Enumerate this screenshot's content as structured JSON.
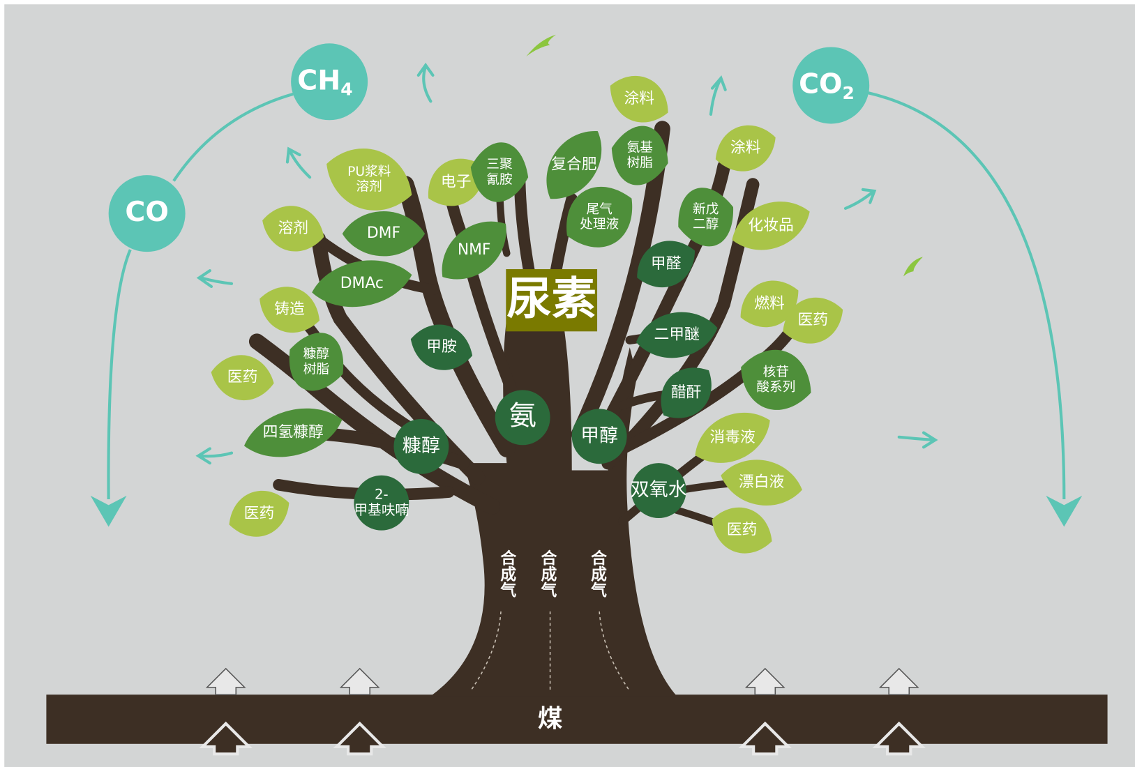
{
  "center_label": "尿素",
  "bubbles": [
    {
      "text": "CH",
      "sub": "4"
    },
    {
      "text": "CO"
    },
    {
      "text": "CO",
      "sub": "2"
    }
  ],
  "syngas": [
    "合成气",
    "合成气",
    "合成气"
  ],
  "ground": "煤",
  "nodes": [
    {
      "lines": [
        "涂料"
      ]
    },
    {
      "lines": [
        "涂料"
      ]
    },
    {
      "lines": [
        "PU浆料",
        "溶剂"
      ]
    },
    {
      "lines": [
        "电子"
      ]
    },
    {
      "lines": [
        "溶剂"
      ]
    },
    {
      "lines": [
        "化妆品"
      ]
    },
    {
      "lines": [
        "铸造"
      ]
    },
    {
      "lines": [
        "燃料"
      ]
    },
    {
      "lines": [
        "医药"
      ]
    },
    {
      "lines": [
        "医药"
      ]
    },
    {
      "lines": [
        "消毒液"
      ]
    },
    {
      "lines": [
        "漂白液"
      ]
    },
    {
      "lines": [
        "医药"
      ]
    },
    {
      "lines": [
        "医药"
      ]
    },
    {
      "lines": [
        "三聚",
        "氰胺"
      ]
    },
    {
      "lines": [
        "复合肥"
      ]
    },
    {
      "lines": [
        "氨基",
        "树脂"
      ]
    },
    {
      "lines": [
        "尾气",
        "处理液"
      ]
    },
    {
      "lines": [
        "新戊",
        "二醇"
      ]
    },
    {
      "lines": [
        "DMF"
      ]
    },
    {
      "lines": [
        "NMF"
      ]
    },
    {
      "lines": [
        "DMAc"
      ]
    },
    {
      "lines": [
        "糠醇",
        "树脂"
      ]
    },
    {
      "lines": [
        "四氢糠醇"
      ]
    },
    {
      "lines": [
        "核苷",
        "酸系列"
      ]
    },
    {
      "lines": [
        "甲醛"
      ]
    },
    {
      "lines": [
        "二甲醚"
      ]
    },
    {
      "lines": [
        "醋酐"
      ]
    },
    {
      "lines": [
        "甲胺"
      ]
    },
    {
      "lines": [
        "氨"
      ]
    },
    {
      "lines": [
        "甲醇"
      ]
    },
    {
      "lines": [
        "糠醇"
      ]
    },
    {
      "lines": [
        "2-",
        "甲基呋喃"
      ]
    },
    {
      "lines": [
        "双氧水"
      ]
    }
  ]
}
